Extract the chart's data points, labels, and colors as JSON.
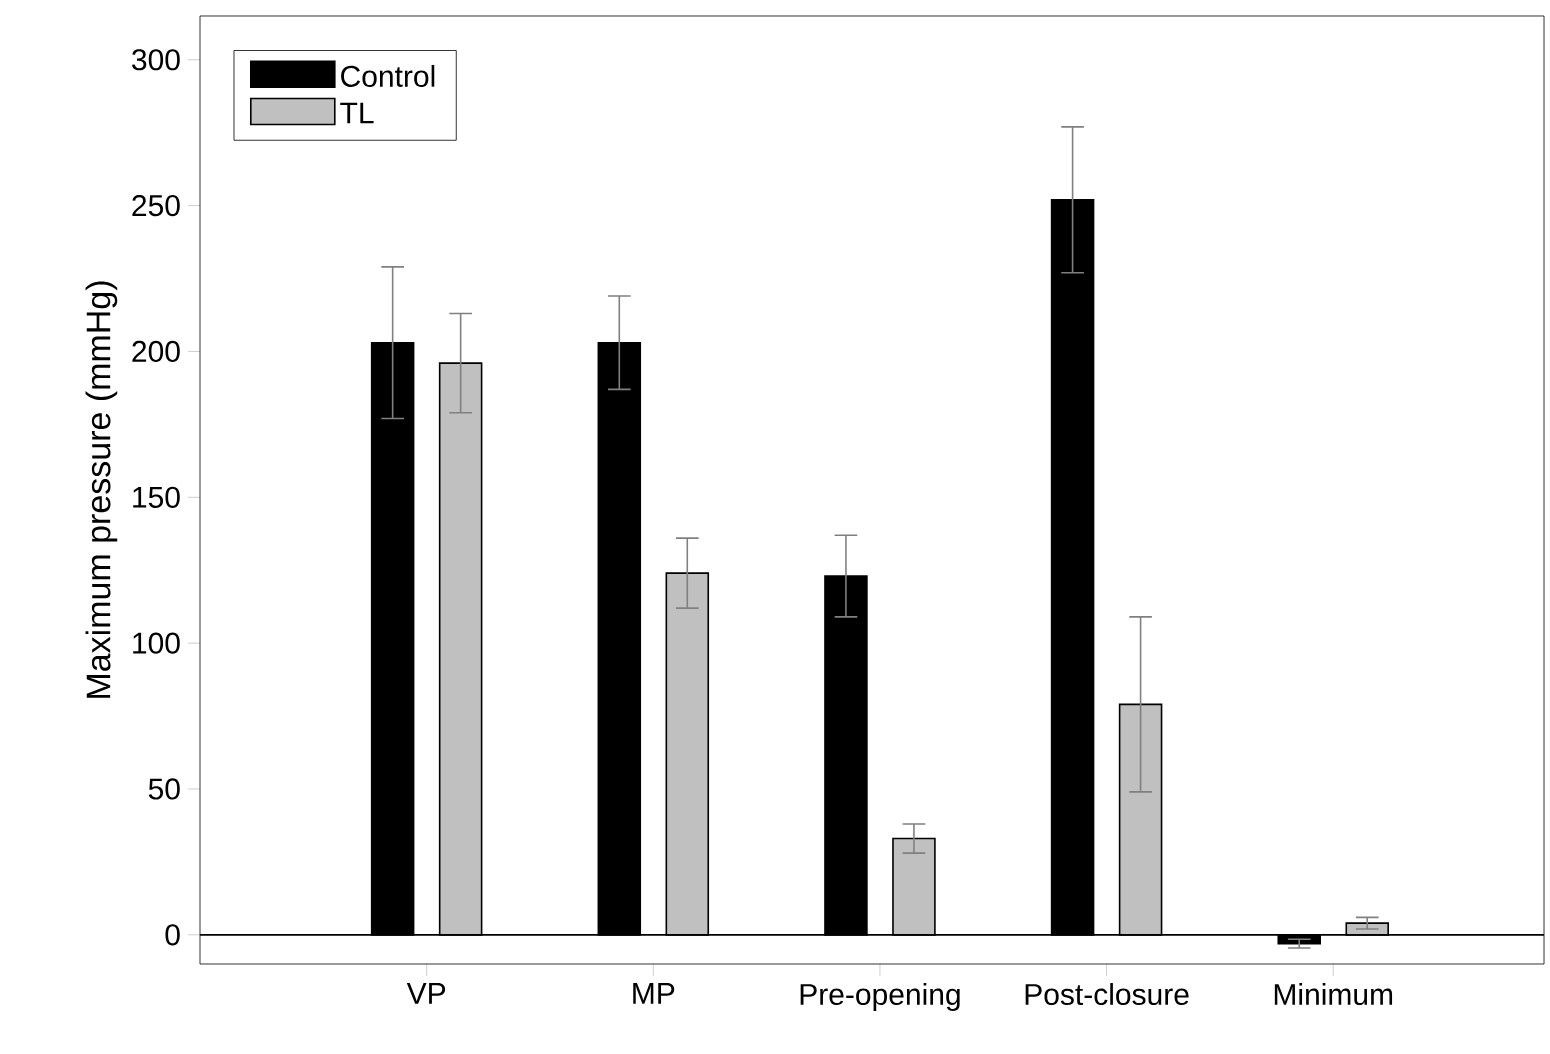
{
  "chart_data": {
    "type": "bar",
    "ylabel": "Maximum pressure (mmHg)",
    "categories": [
      "VP",
      "MP",
      "Pre-opening",
      "Post-closure",
      "Minimum"
    ],
    "series": [
      {
        "name": "Control",
        "color": "#000000",
        "values": [
          203,
          203,
          123,
          252,
          -3
        ],
        "errors": [
          26,
          16,
          14,
          25,
          1.5
        ]
      },
      {
        "name": "TL",
        "color": "#c0c0c0",
        "values": [
          196,
          124,
          33,
          79,
          4
        ],
        "errors": [
          17,
          12,
          5,
          30,
          2
        ]
      }
    ],
    "ylim": [
      -10,
      315
    ],
    "yticks": [
      0,
      50,
      100,
      150,
      200,
      250,
      300
    ],
    "legend": "top left",
    "grid": false
  }
}
